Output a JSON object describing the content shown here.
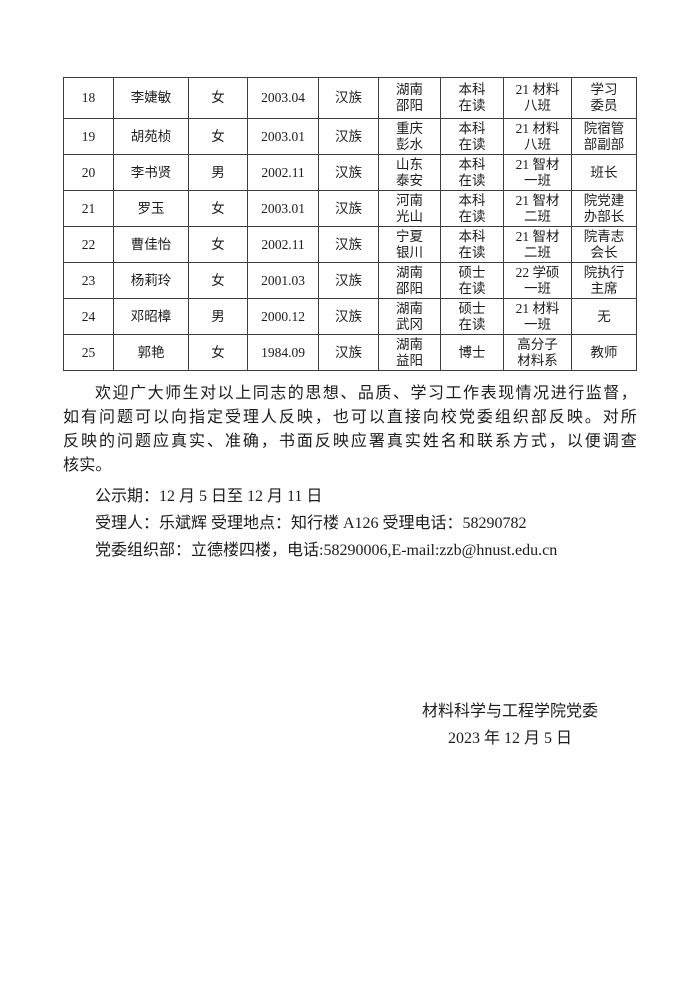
{
  "page": {
    "background": "#ffffff",
    "text_color": "#1c1c1c",
    "table_border_color": "#3e3e3e"
  },
  "table": {
    "columns": [
      "no",
      "name",
      "gender",
      "birth",
      "ethnic",
      "native",
      "edu",
      "clazz",
      "position"
    ],
    "rows": [
      {
        "no": "18",
        "name": "李婕敏",
        "gender": "女",
        "birth": "2003.04",
        "ethnic": "汉族",
        "native": "湖南\n邵阳",
        "edu": "本科\n在读",
        "clazz": "21 材料\n八班",
        "position": "学习\n委员"
      },
      {
        "no": "19",
        "name": "胡苑桢",
        "gender": "女",
        "birth": "2003.01",
        "ethnic": "汉族",
        "native": "重庆\n彭水",
        "edu": "本科\n在读",
        "clazz": "21 材料\n八班",
        "position": "院宿管\n部副部"
      },
      {
        "no": "20",
        "name": "李书贤",
        "gender": "男",
        "birth": "2002.11",
        "ethnic": "汉族",
        "native": "山东\n泰安",
        "edu": "本科\n在读",
        "clazz": "21 智材\n一班",
        "position": "班长"
      },
      {
        "no": "21",
        "name": "罗玉",
        "gender": "女",
        "birth": "2003.01",
        "ethnic": "汉族",
        "native": "河南\n光山",
        "edu": "本科\n在读",
        "clazz": "21 智材\n二班",
        "position": "院党建\n办部长"
      },
      {
        "no": "22",
        "name": "曹佳怡",
        "gender": "女",
        "birth": "2002.11",
        "ethnic": "汉族",
        "native": "宁夏\n银川",
        "edu": "本科\n在读",
        "clazz": "21 智材\n二班",
        "position": "院青志\n会长"
      },
      {
        "no": "23",
        "name": "杨莉玲",
        "gender": "女",
        "birth": "2001.03",
        "ethnic": "汉族",
        "native": "湖南\n邵阳",
        "edu": "硕士\n在读",
        "clazz": "22 学硕\n一班",
        "position": "院执行\n主席"
      },
      {
        "no": "24",
        "name": "邓昭樟",
        "gender": "男",
        "birth": "2000.12",
        "ethnic": "汉族",
        "native": "湖南\n武冈",
        "edu": "硕士\n在读",
        "clazz": "21 材料\n一班",
        "position": "无"
      },
      {
        "no": "25",
        "name": "郭艳",
        "gender": "女",
        "birth": "1984.09",
        "ethnic": "汉族",
        "native": "湖南\n益阳",
        "edu": "博士",
        "clazz": "高分子\n材料系",
        "position": "教师"
      }
    ]
  },
  "body": {
    "paragraph_lines": [
      "欢迎广大师生对以上同志的思想、品质、学习工作表现情况进行监督，",
      "如有问题可以向指定受理人反映，也可以直接向校党委组织部反映。对所",
      "反映的问题应真实、准确，书面反映应署真实姓名和联系方式，以便调查",
      "核实。"
    ],
    "notice_period": "公示期：12 月 5 日至 12 月 11 日",
    "handler_line": "受理人：乐斌辉 受理地点：知行楼 A126 受理电话：58290782",
    "org_dept_line": "党委组织部：立德楼四楼，电话:58290006,E-mail:zzb@hnust.edu.cn"
  },
  "signature": {
    "org": "材料科学与工程学院党委",
    "date": "2023 年 12 月 5 日"
  }
}
